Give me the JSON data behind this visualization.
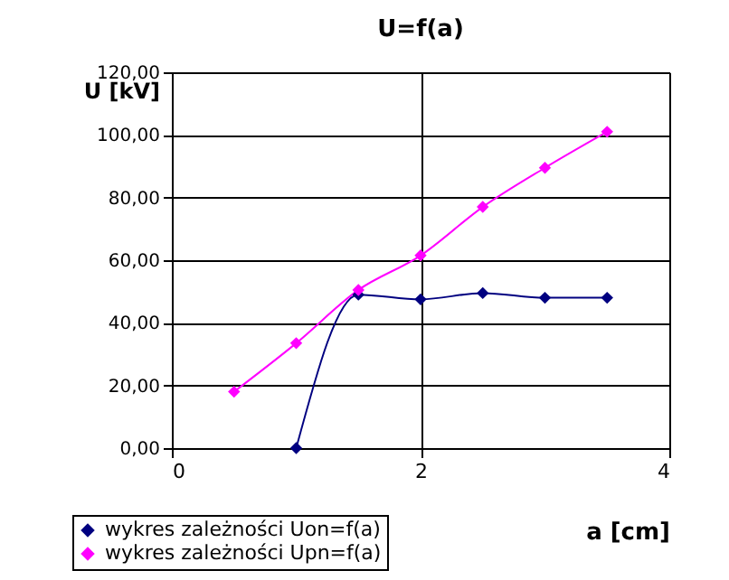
{
  "chart_data": {
    "type": "line",
    "title": "U=f(a)",
    "xlabel": "a [cm]",
    "ylabel": "U [kV]",
    "xlim": [
      0,
      4
    ],
    "xticks": [
      0,
      2,
      4
    ],
    "ylim": [
      0,
      120
    ],
    "yticks": [
      {
        "value": 0,
        "label": "0,00"
      },
      {
        "value": 20,
        "label": "20,00"
      },
      {
        "value": 40,
        "label": "40,00"
      },
      {
        "value": 60,
        "label": "60,00"
      },
      {
        "value": 80,
        "label": "80,00"
      },
      {
        "value": 100,
        "label": "100,00"
      },
      {
        "value": 120,
        "label": "120,00"
      }
    ],
    "grid": true,
    "legend": "bottom",
    "marker": "diamond",
    "line_style": "solid",
    "series": [
      {
        "name": "wykres zależności Uon=f(a)",
        "color": "#000080",
        "x": [
          1,
          1.5,
          2,
          2.5,
          3,
          3.5
        ],
        "values": [
          0,
          49,
          47.5,
          49.5,
          48,
          48
        ]
      },
      {
        "name": "wykres zależności Upn=f(a)",
        "color": "#ff00ff",
        "x": [
          0.5,
          1,
          1.5,
          2,
          2.5,
          3,
          3.5
        ],
        "values": [
          18,
          33.5,
          50.5,
          61.5,
          77,
          89.5,
          101
        ]
      }
    ]
  }
}
